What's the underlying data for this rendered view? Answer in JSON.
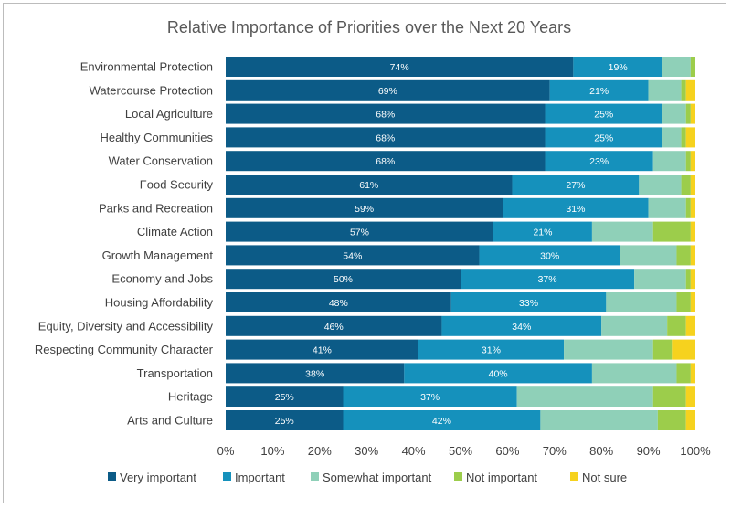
{
  "chart_data": {
    "type": "bar",
    "orientation": "horizontal",
    "stacked": true,
    "title": "Relative Importance of Priorities over the Next 20 Years",
    "categories": [
      "Environmental Protection",
      "Watercourse Protection",
      "Local Agriculture",
      "Healthy Communities",
      "Water Conservation",
      "Food Security",
      "Parks and Recreation",
      "Climate Action",
      "Growth Management",
      "Economy and Jobs",
      "Housing Affordability",
      "Equity, Diversity and Accessibility",
      "Respecting Community Character",
      "Transportation",
      "Heritage",
      "Arts and Culture"
    ],
    "series": [
      {
        "name": "Very important",
        "color": "#0c5b87",
        "values": [
          74,
          69,
          68,
          68,
          68,
          61,
          59,
          57,
          54,
          50,
          48,
          46,
          41,
          38,
          25,
          25
        ],
        "labels": [
          "74%",
          "69%",
          "68%",
          "68%",
          "68%",
          "61%",
          "59%",
          "57%",
          "54%",
          "50%",
          "48%",
          "46%",
          "41%",
          "38%",
          "25%",
          "25%"
        ]
      },
      {
        "name": "Important",
        "color": "#1591bc",
        "values": [
          19,
          21,
          25,
          25,
          23,
          27,
          31,
          21,
          30,
          37,
          33,
          34,
          31,
          40,
          37,
          42
        ],
        "labels": [
          "19%",
          "21%",
          "25%",
          "25%",
          "23%",
          "27%",
          "31%",
          "21%",
          "30%",
          "37%",
          "33%",
          "34%",
          "31%",
          "40%",
          "37%",
          "42%"
        ]
      },
      {
        "name": "Somewhat important",
        "color": "#8fd0b8",
        "values": [
          6,
          7,
          5,
          4,
          7,
          9,
          8,
          13,
          12,
          11,
          15,
          14,
          19,
          18,
          29,
          25
        ],
        "labels": []
      },
      {
        "name": "Not important",
        "color": "#9ccd4b",
        "values": [
          1,
          1,
          1,
          1,
          1,
          2,
          1,
          8,
          3,
          1,
          3,
          4,
          4,
          3,
          7,
          6
        ],
        "labels": []
      },
      {
        "name": "Not sure",
        "color": "#f6d21e",
        "values": [
          0,
          2,
          1,
          2,
          1,
          1,
          1,
          1,
          1,
          1,
          1,
          2,
          5,
          1,
          2,
          2
        ],
        "labels": []
      }
    ],
    "xlim": [
      0,
      100
    ],
    "xticks": [
      "0%",
      "10%",
      "20%",
      "30%",
      "40%",
      "50%",
      "60%",
      "70%",
      "80%",
      "90%",
      "100%"
    ],
    "legend_position": "bottom",
    "grid": false
  }
}
